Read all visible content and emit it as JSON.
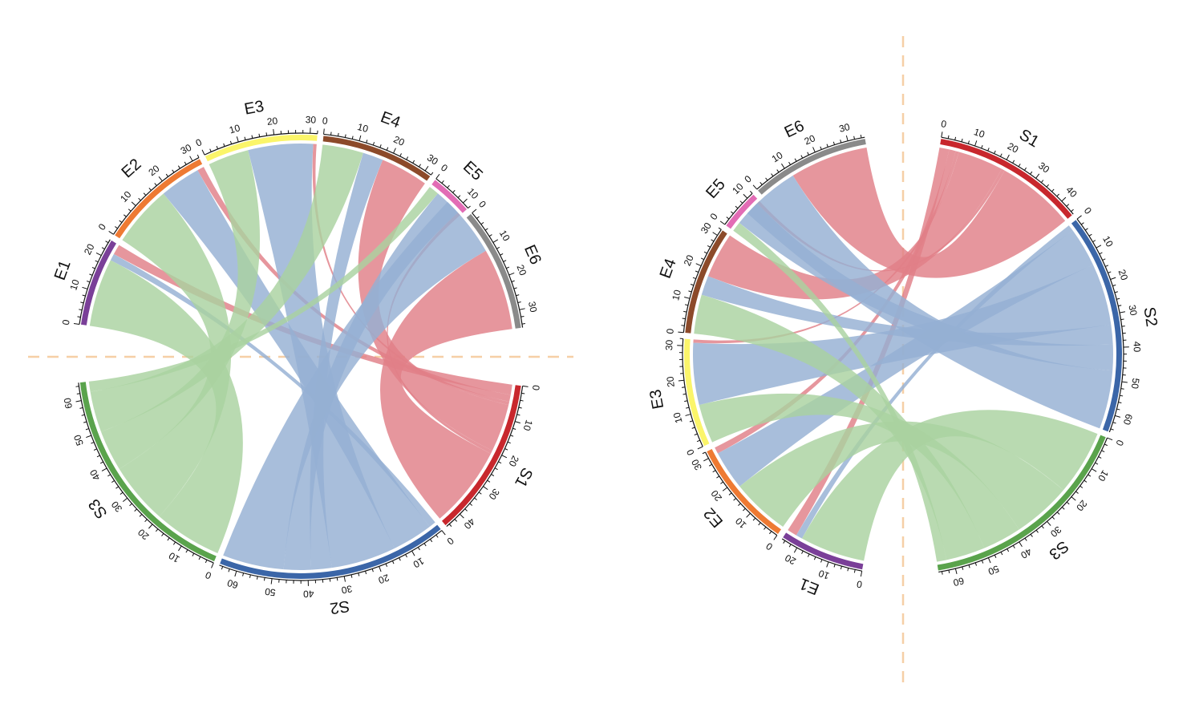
{
  "chart_data": [
    {
      "type": "chord",
      "gap_axis": "horizontal",
      "sectors": [
        {
          "name": "S1",
          "max": 45,
          "color": "#c8272d",
          "tick_labels": [
            "0",
            "10",
            "20",
            "30",
            "40"
          ]
        },
        {
          "name": "S2",
          "max": 65,
          "color": "#3b66a8",
          "tick_labels": [
            "0",
            "10",
            "20",
            "30",
            "40",
            "50",
            "60"
          ]
        },
        {
          "name": "S3",
          "max": 65,
          "color": "#5aa34c",
          "tick_labels": [
            "0",
            "10",
            "20",
            "30",
            "40",
            "50",
            "60"
          ]
        },
        {
          "name": "E1",
          "max": 25,
          "color": "#7a3f98",
          "tick_labels": [
            "0",
            "10",
            "20"
          ]
        },
        {
          "name": "E2",
          "max": 32,
          "color": "#ee7a33",
          "tick_labels": [
            "0",
            "10",
            "20",
            "30"
          ]
        },
        {
          "name": "E3",
          "max": 32,
          "color": "#fbf56a",
          "tick_labels": [
            "0",
            "10",
            "20",
            "30"
          ]
        },
        {
          "name": "E4",
          "max": 32,
          "color": "#8c4a2a",
          "tick_labels": [
            "0",
            "10",
            "20",
            "30"
          ]
        },
        {
          "name": "E5",
          "max": 12,
          "color": "#e26cb5",
          "tick_labels": [
            "0",
            "10"
          ]
        },
        {
          "name": "E6",
          "max": 35,
          "color": "#8a8a8a",
          "tick_labels": [
            "0",
            "10",
            "20",
            "30"
          ]
        }
      ],
      "links": [
        {
          "from": "S1",
          "to": "E1",
          "value": 3,
          "color": "#e07f87"
        },
        {
          "from": "S1",
          "to": "E2",
          "value": 2,
          "color": "#e07f87"
        },
        {
          "from": "S1",
          "to": "E3",
          "value": 1,
          "color": "#e07f87"
        },
        {
          "from": "S1",
          "to": "E4",
          "value": 14,
          "color": "#e07f87"
        },
        {
          "from": "S1",
          "to": "E5",
          "value": 1,
          "color": "#e07f87"
        },
        {
          "from": "S1",
          "to": "E6",
          "value": 24,
          "color": "#e07f87"
        },
        {
          "from": "S2",
          "to": "E1",
          "value": 2,
          "color": "#95b0d3"
        },
        {
          "from": "S2",
          "to": "E2",
          "value": 12,
          "color": "#95b0d3"
        },
        {
          "from": "S2",
          "to": "E3",
          "value": 19,
          "color": "#95b0d3"
        },
        {
          "from": "S2",
          "to": "E4",
          "value": 6,
          "color": "#95b0d3"
        },
        {
          "from": "S2",
          "to": "E5",
          "value": 8,
          "color": "#95b0d3"
        },
        {
          "from": "S2",
          "to": "E6",
          "value": 18,
          "color": "#95b0d3"
        },
        {
          "from": "S3",
          "to": "E1",
          "value": 20,
          "color": "#a9d2a0"
        },
        {
          "from": "S3",
          "to": "E2",
          "value": 18,
          "color": "#a9d2a0"
        },
        {
          "from": "S3",
          "to": "E3",
          "value": 12,
          "color": "#a9d2a0"
        },
        {
          "from": "S3",
          "to": "E4",
          "value": 12,
          "color": "#a9d2a0"
        },
        {
          "from": "S3",
          "to": "E5",
          "value": 3,
          "color": "#a9d2a0"
        },
        {
          "from": "S3",
          "to": "E6",
          "value": 0,
          "color": "#a9d2a0"
        }
      ]
    },
    {
      "type": "chord",
      "gap_axis": "vertical",
      "sectors": [
        {
          "name": "S1",
          "max": 45,
          "color": "#c8272d",
          "tick_labels": [
            "0",
            "10",
            "20",
            "30",
            "40"
          ]
        },
        {
          "name": "S2",
          "max": 65,
          "color": "#3b66a8",
          "tick_labels": [
            "0",
            "10",
            "20",
            "30",
            "40",
            "50",
            "60"
          ]
        },
        {
          "name": "S3",
          "max": 65,
          "color": "#5aa34c",
          "tick_labels": [
            "0",
            "10",
            "20",
            "30",
            "40",
            "50",
            "60"
          ]
        },
        {
          "name": "E1",
          "max": 25,
          "color": "#7a3f98",
          "tick_labels": [
            "0",
            "10",
            "20"
          ]
        },
        {
          "name": "E2",
          "max": 32,
          "color": "#ee7a33",
          "tick_labels": [
            "0",
            "10",
            "20",
            "30"
          ]
        },
        {
          "name": "E3",
          "max": 32,
          "color": "#fbf56a",
          "tick_labels": [
            "0",
            "10",
            "20",
            "30"
          ]
        },
        {
          "name": "E4",
          "max": 32,
          "color": "#8c4a2a",
          "tick_labels": [
            "0",
            "10",
            "20",
            "30"
          ]
        },
        {
          "name": "E5",
          "max": 12,
          "color": "#e26cb5",
          "tick_labels": [
            "0",
            "10"
          ]
        },
        {
          "name": "E6",
          "max": 35,
          "color": "#8a8a8a",
          "tick_labels": [
            "0",
            "10",
            "20",
            "30"
          ]
        }
      ],
      "links": [
        {
          "from": "S1",
          "to": "E1",
          "value": 3,
          "color": "#e07f87"
        },
        {
          "from": "S1",
          "to": "E2",
          "value": 2,
          "color": "#e07f87"
        },
        {
          "from": "S1",
          "to": "E3",
          "value": 1,
          "color": "#e07f87"
        },
        {
          "from": "S1",
          "to": "E4",
          "value": 14,
          "color": "#e07f87"
        },
        {
          "from": "S1",
          "to": "E5",
          "value": 1,
          "color": "#e07f87"
        },
        {
          "from": "S1",
          "to": "E6",
          "value": 24,
          "color": "#e07f87"
        },
        {
          "from": "S2",
          "to": "E1",
          "value": 2,
          "color": "#95b0d3"
        },
        {
          "from": "S2",
          "to": "E2",
          "value": 12,
          "color": "#95b0d3"
        },
        {
          "from": "S2",
          "to": "E3",
          "value": 19,
          "color": "#95b0d3"
        },
        {
          "from": "S2",
          "to": "E4",
          "value": 6,
          "color": "#95b0d3"
        },
        {
          "from": "S2",
          "to": "E5",
          "value": 8,
          "color": "#95b0d3"
        },
        {
          "from": "S2",
          "to": "E6",
          "value": 18,
          "color": "#95b0d3"
        },
        {
          "from": "S3",
          "to": "E1",
          "value": 20,
          "color": "#a9d2a0"
        },
        {
          "from": "S3",
          "to": "E2",
          "value": 18,
          "color": "#a9d2a0"
        },
        {
          "from": "S3",
          "to": "E3",
          "value": 12,
          "color": "#a9d2a0"
        },
        {
          "from": "S3",
          "to": "E4",
          "value": 12,
          "color": "#a9d2a0"
        },
        {
          "from": "S3",
          "to": "E5",
          "value": 3,
          "color": "#a9d2a0"
        },
        {
          "from": "S3",
          "to": "E6",
          "value": 0,
          "color": "#a9d2a0"
        }
      ]
    }
  ],
  "colors": {
    "gap_line": "#f6cfa6",
    "tick": "#111111",
    "background": "#ffffff"
  }
}
